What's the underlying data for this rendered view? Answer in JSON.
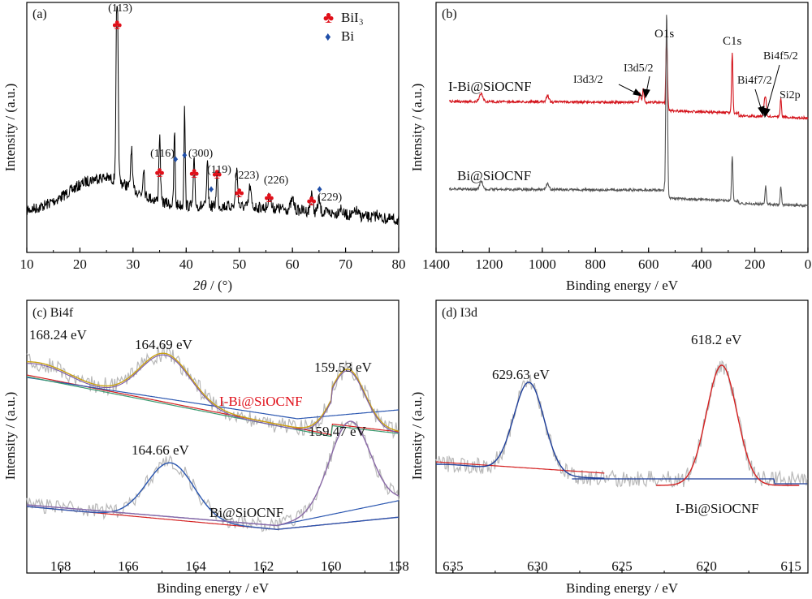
{
  "chart_data": [
    {
      "panel": "(a)",
      "type": "line",
      "xlabel_italic": "2θ",
      "xlabel_rest": " / (°)",
      "ylabel": "Intensity / (a.u.)",
      "xlim": [
        10,
        80
      ],
      "xticks": [
        "10",
        "20",
        "30",
        "40",
        "50",
        "60",
        "70",
        "80"
      ],
      "legend": [
        {
          "symbol": "♣",
          "label": "BiI₃",
          "color": "#e0101a"
        },
        {
          "symbol": "♦",
          "label": "Bi",
          "color": "#1f4ea8"
        }
      ],
      "peaks_bii3": [
        {
          "x": 27.0,
          "label": "(113)"
        },
        {
          "x": 35.0,
          "label": "(116)"
        },
        {
          "x": 41.5,
          "label": "(300)"
        },
        {
          "x": 45.8,
          "label": "(119)"
        },
        {
          "x": 50.0,
          "label": "(223)"
        },
        {
          "x": 55.6,
          "label": "(226)"
        },
        {
          "x": 63.6,
          "label": "(229)"
        }
      ],
      "peaks_bi": [
        38.0,
        39.7,
        44.7,
        65.1
      ],
      "series": [
        {
          "color": "#000000"
        }
      ]
    },
    {
      "panel": "(b)",
      "type": "line",
      "xlabel": "Binding energy / eV",
      "ylabel": "Intensity / (a.u.)",
      "xlim": [
        1400,
        0
      ],
      "xticks": [
        "1400",
        "1200",
        "1000",
        "800",
        "600",
        "400",
        "200",
        "0"
      ],
      "series": [
        {
          "name": "I-Bi@SiOCNF",
          "color": "#d4141c"
        },
        {
          "name": "Bi@SiOCNF",
          "color": "#555555"
        }
      ],
      "annotations": [
        {
          "text": "O1s",
          "x": 532
        },
        {
          "text": "C1s",
          "x": 285
        },
        {
          "text": "I3d3/2",
          "x": 630
        },
        {
          "text": "I3d5/2",
          "x": 619
        },
        {
          "text": "Bi4f5/2",
          "x": 164
        },
        {
          "text": "Bi4f7/2",
          "x": 159
        },
        {
          "text": "Si2p",
          "x": 102
        }
      ]
    },
    {
      "panel": "(c) Bi4f",
      "type": "line",
      "xlabel": "Binding energy / eV",
      "ylabel": "Intensity / (a.u.)",
      "xlim": [
        169,
        158
      ],
      "xticks": [
        "168",
        "166",
        "164",
        "162",
        "160",
        "158"
      ],
      "series": [
        {
          "name": "I-Bi@SiOCNF",
          "color": "#e0101a"
        },
        {
          "name": "Bi@SiOCNF",
          "color": "#222222"
        }
      ],
      "peak_labels": [
        "168.24 eV",
        "164.69 eV",
        "159.53 eV",
        "164.66 eV",
        "159.47 eV"
      ]
    },
    {
      "panel": "(d) I3d",
      "type": "line",
      "xlabel": "Binding energy / eV",
      "ylabel": "Intensity / (a.u.)",
      "xlim": [
        636,
        614
      ],
      "xticks": [
        "635",
        "630",
        "625",
        "620",
        "615"
      ],
      "series": [
        {
          "name": "I-Bi@SiOCNF",
          "color": "#1f3f9a"
        }
      ],
      "peak_labels": [
        "629.63 eV",
        "618.2 eV"
      ]
    }
  ]
}
